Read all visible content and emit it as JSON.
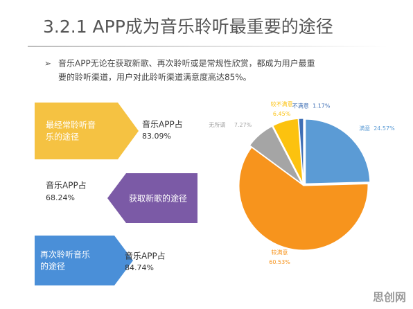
{
  "title": "3.2.1 APP成为音乐聆听最重要的途径",
  "bullet": {
    "marker": "➢",
    "lines": [
      "音乐APP无论在获取新歌、再次聆听或是常规性欣赏，都成为用户最重",
      "要的聆听渠道，用户对此聆听渠道满意度高达85%。"
    ]
  },
  "callouts": [
    {
      "box_lines": [
        "最经常聆听音",
        "乐的途径"
      ],
      "note_lines": [
        "音乐APP占",
        "83.09%"
      ]
    },
    {
      "box_lines": [
        "获取新歌的途径"
      ],
      "note_lines": [
        "音乐APP占",
        "68.24%"
      ]
    },
    {
      "box_lines": [
        "再次聆听音乐",
        "的途径"
      ],
      "note_lines": [
        "音乐APP占",
        "84.74%"
      ]
    }
  ],
  "watermark": "思创网",
  "chart_data": {
    "type": "pie",
    "categories": [
      "满意",
      "较满意",
      "无所谓",
      "较不满意",
      "不满意"
    ],
    "values": [
      24.57,
      60.53,
      7.27,
      6.45,
      1.17
    ],
    "value_labels": [
      "24.57%",
      "60.53%",
      "7.27%",
      "6.45%",
      "1.17%"
    ],
    "colors": [
      "#5b9bd5",
      "#f7941d",
      "#a5a5a5",
      "#fcc20f",
      "#3f6fb5"
    ]
  }
}
